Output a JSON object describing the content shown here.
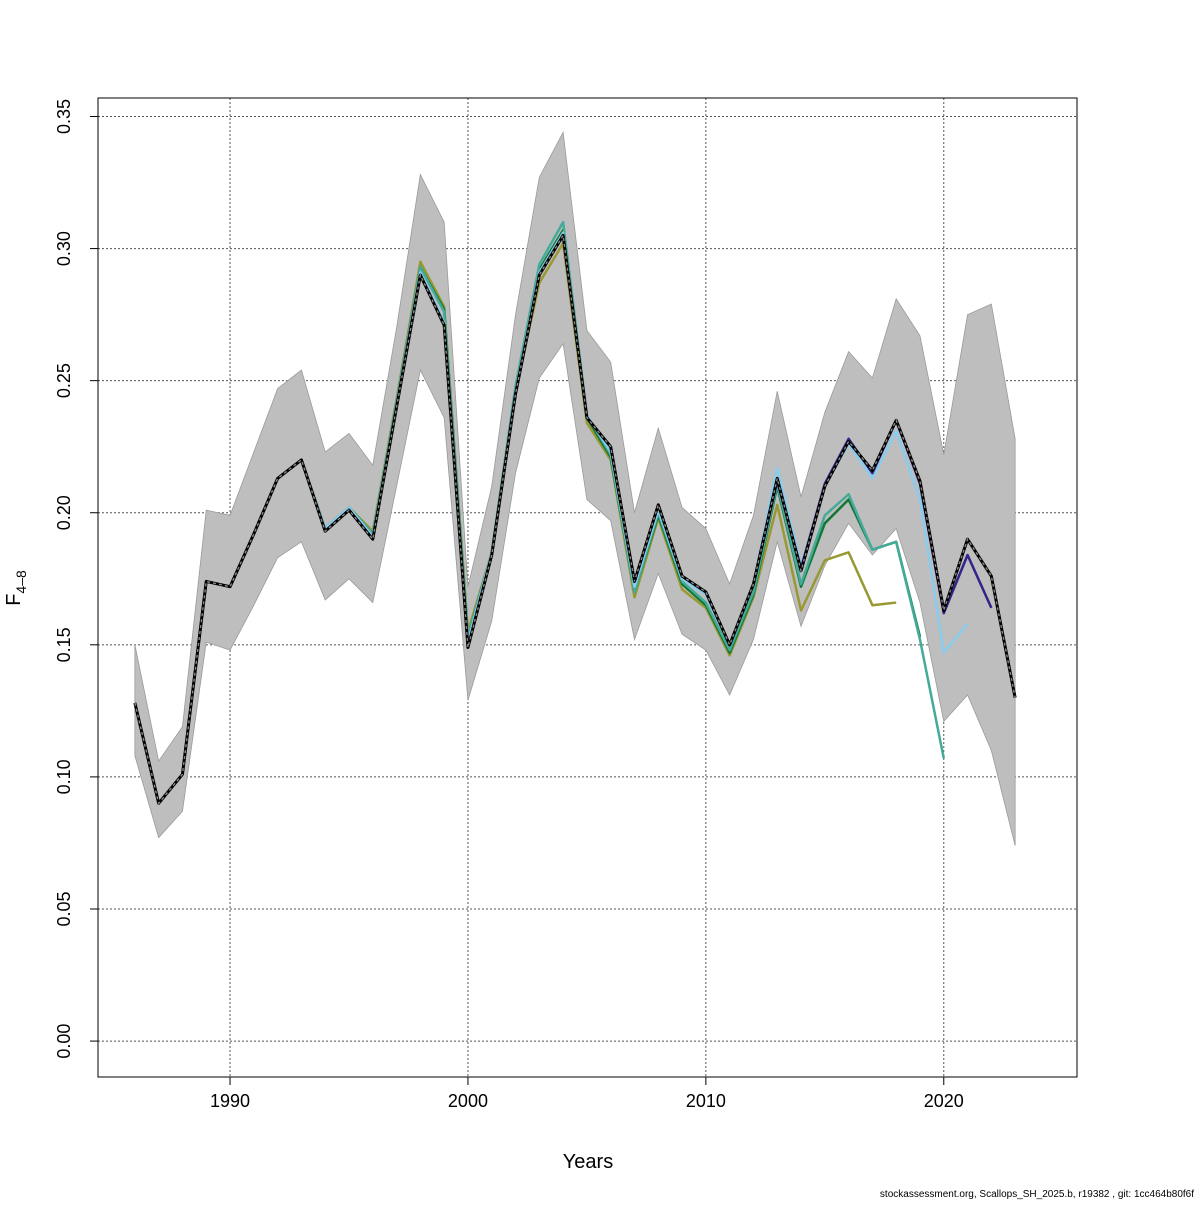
{
  "chart_data": {
    "type": "line",
    "xlabel": "Years",
    "ylabel_main": "F",
    "ylabel_sub": "4–8",
    "xlim": [
      1984.45,
      2025.6
    ],
    "ylim": [
      -0.0136,
      0.357
    ],
    "xticks": [
      1990,
      2000,
      2010,
      2020
    ],
    "xtick_labels": [
      "1990",
      "2000",
      "2010",
      "2020"
    ],
    "yticks": [
      0.0,
      0.05,
      0.1,
      0.15,
      0.2,
      0.25,
      0.3,
      0.35
    ],
    "ytick_labels": [
      "0.00",
      "0.05",
      "0.10",
      "0.15",
      "0.20",
      "0.25",
      "0.30",
      "0.35"
    ],
    "grid": true,
    "band": {
      "color": "#BEBEBE",
      "x_start": 1986,
      "upper": [
        0.15,
        0.106,
        0.119,
        0.201,
        0.199,
        0.223,
        0.247,
        0.254,
        0.223,
        0.23,
        0.218,
        0.27,
        0.328,
        0.31,
        0.172,
        0.21,
        0.275,
        0.327,
        0.344,
        0.269,
        0.257,
        0.2,
        0.232,
        0.202,
        0.194,
        0.173,
        0.199,
        0.246,
        0.206,
        0.238,
        0.261,
        0.251,
        0.281,
        0.267,
        0.222,
        0.275,
        0.279,
        0.228
      ],
      "lower": [
        0.108,
        0.077,
        0.087,
        0.151,
        0.148,
        0.165,
        0.183,
        0.189,
        0.167,
        0.175,
        0.166,
        0.21,
        0.254,
        0.236,
        0.129,
        0.159,
        0.215,
        0.251,
        0.264,
        0.205,
        0.197,
        0.152,
        0.177,
        0.154,
        0.148,
        0.131,
        0.152,
        0.189,
        0.157,
        0.18,
        0.196,
        0.184,
        0.194,
        0.166,
        0.121,
        0.131,
        0.11,
        0.074
      ]
    },
    "series": [
      {
        "color": "#999933",
        "x_start": 1986,
        "dashed": false,
        "values": [
          0.128,
          0.09,
          0.101,
          0.174,
          0.172,
          0.192,
          0.213,
          0.22,
          0.194,
          0.202,
          0.193,
          0.243,
          0.295,
          0.278,
          0.155,
          0.185,
          0.246,
          0.287,
          0.302,
          0.234,
          0.22,
          0.168,
          0.198,
          0.171,
          0.164,
          0.146,
          0.168,
          0.203,
          0.163,
          0.182,
          0.185,
          0.165,
          0.166
        ]
      },
      {
        "color": "#117733",
        "x_start": 1986,
        "dashed": false,
        "values": [
          0.128,
          0.09,
          0.101,
          0.174,
          0.172,
          0.192,
          0.213,
          0.22,
          0.194,
          0.202,
          0.192,
          0.242,
          0.293,
          0.277,
          0.153,
          0.185,
          0.247,
          0.292,
          0.307,
          0.236,
          0.221,
          0.17,
          0.199,
          0.173,
          0.165,
          0.147,
          0.169,
          0.21,
          0.172,
          0.196,
          0.205,
          0.186,
          0.189,
          0.153
        ]
      },
      {
        "color": "#44AA99",
        "x_start": 1986,
        "dashed": false,
        "values": [
          0.128,
          0.09,
          0.101,
          0.174,
          0.172,
          0.192,
          0.213,
          0.22,
          0.194,
          0.202,
          0.192,
          0.242,
          0.293,
          0.276,
          0.153,
          0.185,
          0.248,
          0.294,
          0.31,
          0.237,
          0.222,
          0.17,
          0.2,
          0.174,
          0.166,
          0.148,
          0.17,
          0.211,
          0.173,
          0.199,
          0.207,
          0.186,
          0.189,
          0.152,
          0.107
        ]
      },
      {
        "color": "#88CCEE",
        "x_start": 1986,
        "dashed": false,
        "values": [
          0.128,
          0.09,
          0.101,
          0.174,
          0.172,
          0.192,
          0.213,
          0.22,
          0.194,
          0.202,
          0.191,
          0.241,
          0.291,
          0.272,
          0.151,
          0.185,
          0.246,
          0.291,
          0.306,
          0.237,
          0.223,
          0.172,
          0.201,
          0.175,
          0.169,
          0.15,
          0.173,
          0.217,
          0.18,
          0.21,
          0.226,
          0.213,
          0.231,
          0.205,
          0.147,
          0.158
        ]
      },
      {
        "color": "#332288",
        "x_start": 1986,
        "dashed": false,
        "values": [
          0.128,
          0.09,
          0.101,
          0.174,
          0.172,
          0.192,
          0.213,
          0.22,
          0.193,
          0.201,
          0.19,
          0.24,
          0.29,
          0.271,
          0.149,
          0.184,
          0.245,
          0.29,
          0.305,
          0.236,
          0.225,
          0.174,
          0.203,
          0.176,
          0.17,
          0.15,
          0.173,
          0.212,
          0.179,
          0.211,
          0.228,
          0.215,
          0.235,
          0.211,
          0.162,
          0.184,
          0.164
        ]
      },
      {
        "color": "#000000",
        "x_start": 1986,
        "dashed": true,
        "values": [
          0.128,
          0.09,
          0.101,
          0.174,
          0.172,
          0.192,
          0.213,
          0.22,
          0.193,
          0.201,
          0.19,
          0.24,
          0.29,
          0.271,
          0.149,
          0.184,
          0.245,
          0.29,
          0.305,
          0.236,
          0.225,
          0.174,
          0.203,
          0.176,
          0.17,
          0.15,
          0.173,
          0.213,
          0.178,
          0.21,
          0.227,
          0.216,
          0.235,
          0.212,
          0.163,
          0.19,
          0.176,
          0.13
        ]
      }
    ]
  },
  "footer": "stockassessment.org, Scallops_SH_2025.b, r19382 , git: 1cc464b80f6f"
}
